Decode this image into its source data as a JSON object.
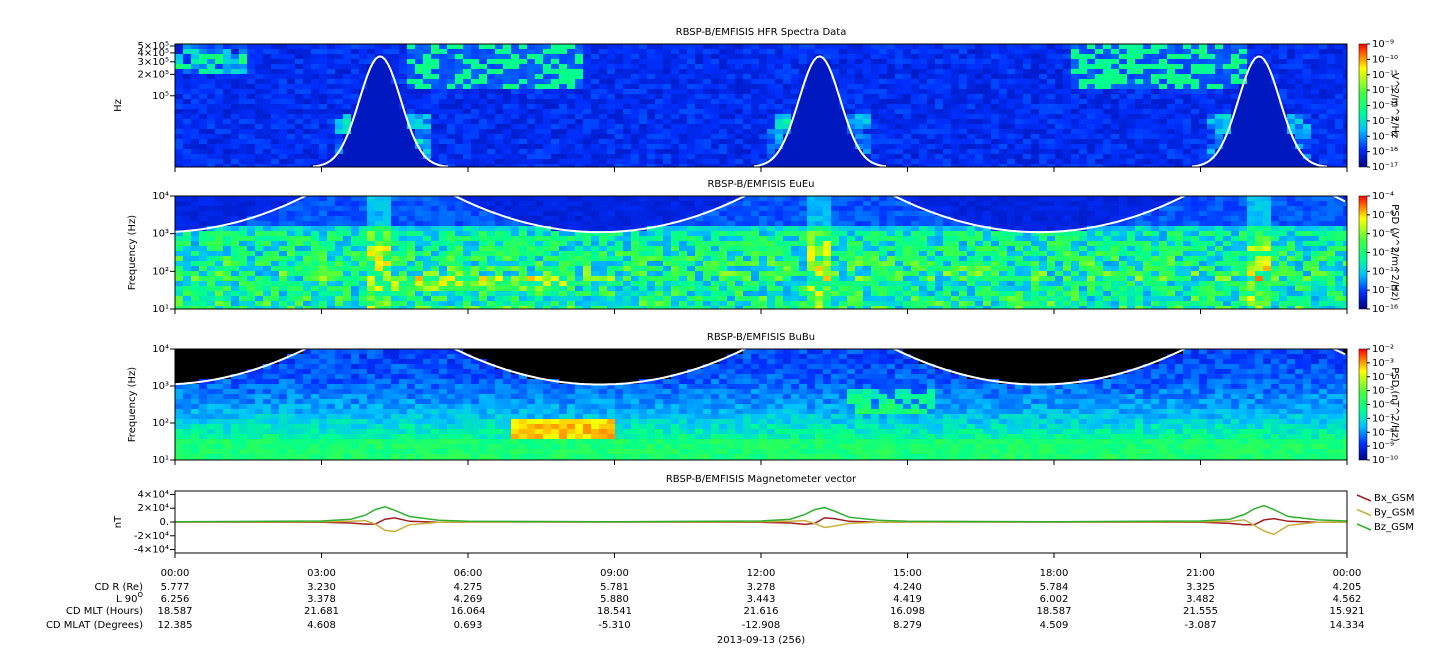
{
  "chart_data": [
    {
      "type": "spectrogram",
      "title": "RBSP-B/EMFISIS  HFR Spectra Data",
      "ylabel": "Hz",
      "log": true,
      "ylim": [
        10000,
        533000
      ],
      "yticks": [
        {
          "value": 500000,
          "label": "5×10⁵"
        },
        {
          "value": 400000,
          "label": "4×10⁵"
        },
        {
          "value": 300000,
          "label": "3×10⁵"
        },
        {
          "value": 200000,
          "label": "2×10⁵"
        },
        {
          "value": 100000,
          "label": "10⁵"
        }
      ],
      "colorbar": {
        "label": "V^2/m^2/Hz",
        "zlim": [
          1e-17,
          1e-09
        ],
        "zticks": [
          {
            "value": 1e-09,
            "label": "10⁻⁹"
          },
          {
            "value": 1e-10,
            "label": "10⁻¹⁰"
          },
          {
            "value": 1e-11,
            "label": "10⁻¹¹"
          },
          {
            "value": 1e-12,
            "label": "10⁻¹²"
          },
          {
            "value": 1e-13,
            "label": "10⁻¹³"
          },
          {
            "value": 1e-14,
            "label": "10⁻¹⁴"
          },
          {
            "value": 1e-15,
            "label": "10⁻¹⁵"
          },
          {
            "value": 1e-16,
            "label": "10⁻¹⁶"
          },
          {
            "value": 1e-17,
            "label": "10⁻¹⁷"
          }
        ]
      }
    },
    {
      "type": "spectrogram",
      "title": "RBSP-B/EMFISIS  EuEu",
      "ylabel": "Frequency (Hz)",
      "log": true,
      "ylim": [
        10,
        10000
      ],
      "yticks": [
        {
          "value": 10000,
          "label": "10⁴"
        },
        {
          "value": 1000,
          "label": "10³"
        },
        {
          "value": 100,
          "label": "10²"
        },
        {
          "value": 10,
          "label": "10¹"
        }
      ],
      "colorbar": {
        "label": "PSD (V^2/m^2/Hz)",
        "zlim": [
          1e-16,
          0.0001
        ],
        "zticks": [
          {
            "value": 0.0001,
            "label": "10⁻⁴"
          },
          {
            "value": 1e-06,
            "label": "10⁻⁶"
          },
          {
            "value": 1e-08,
            "label": "10⁻⁸"
          },
          {
            "value": 1e-10,
            "label": "10⁻¹⁰"
          },
          {
            "value": 1e-12,
            "label": "10⁻¹²"
          },
          {
            "value": 1e-14,
            "label": "10⁻¹⁴"
          },
          {
            "value": 1e-16,
            "label": "10⁻¹⁶"
          }
        ]
      }
    },
    {
      "type": "spectrogram",
      "title": "RBSP-B/EMFISIS  BuBu",
      "ylabel": "Frequency (Hz)",
      "log": true,
      "ylim": [
        10,
        10000
      ],
      "yticks": [
        {
          "value": 10000,
          "label": "10⁴"
        },
        {
          "value": 1000,
          "label": "10³"
        },
        {
          "value": 100,
          "label": "10²"
        },
        {
          "value": 10,
          "label": "10¹"
        }
      ],
      "colorbar": {
        "label": "PSD (nT^2/Hz)",
        "zlim": [
          1e-10,
          0.01
        ],
        "zticks": [
          {
            "value": 0.01,
            "label": "10⁻²"
          },
          {
            "value": 0.001,
            "label": "10⁻³"
          },
          {
            "value": 0.0001,
            "label": "10⁻⁴"
          },
          {
            "value": 1e-05,
            "label": "10⁻⁵"
          },
          {
            "value": 1e-06,
            "label": "10⁻⁶"
          },
          {
            "value": 1e-07,
            "label": "10⁻⁷"
          },
          {
            "value": 1e-08,
            "label": "10⁻⁸"
          },
          {
            "value": 1e-09,
            "label": "10⁻⁹"
          },
          {
            "value": 1e-10,
            "label": "10⁻¹⁰"
          }
        ]
      }
    },
    {
      "type": "line",
      "title": "RBSP-B/EMFISIS  Magnetometer vector",
      "ylabel": "nT",
      "ylim": [
        -45000,
        45000
      ],
      "yticks": [
        {
          "value": 40000,
          "label": "4×10⁴"
        },
        {
          "value": 20000,
          "label": "2×10⁴"
        },
        {
          "value": 0,
          "label": "0."
        },
        {
          "value": -20000,
          "label": "-2×10⁴"
        },
        {
          "value": -40000,
          "label": "-4×10⁴"
        }
      ],
      "x": [
        0,
        3,
        3.6,
        3.9,
        4.1,
        4.3,
        4.5,
        4.8,
        5.4,
        6,
        9,
        12,
        12.6,
        12.9,
        13.1,
        13.3,
        13.5,
        13.8,
        14.4,
        15,
        18,
        21,
        21.6,
        21.9,
        22.1,
        22.3,
        22.5,
        22.8,
        23.4,
        24
      ],
      "series": [
        {
          "name": "Bx_GSM",
          "color": "#a02020",
          "values": [
            0,
            -500,
            -1500,
            -3000,
            -3000,
            4000,
            6000,
            1000,
            -500,
            0,
            0,
            -500,
            -1500,
            -3500,
            -2000,
            6000,
            5000,
            1000,
            -500,
            0,
            0,
            -500,
            -2000,
            -4000,
            -4000,
            3000,
            5000,
            1000,
            -500,
            0
          ]
        },
        {
          "name": "By_GSM",
          "color": "#c8b040",
          "values": [
            0,
            300,
            1000,
            2000,
            -3000,
            -12000,
            -14000,
            -4000,
            -500,
            0,
            0,
            300,
            1000,
            2000,
            -2000,
            -8000,
            -6000,
            -2000,
            -500,
            0,
            0,
            300,
            1000,
            3000,
            -5000,
            -13000,
            -18000,
            -5000,
            -500,
            0
          ]
        },
        {
          "name": "Bz_GSM",
          "color": "#30b030",
          "values": [
            500,
            1500,
            4000,
            10000,
            18000,
            22000,
            17000,
            8000,
            2500,
            1000,
            500,
            1500,
            4000,
            11000,
            18000,
            21000,
            16000,
            7000,
            2500,
            1000,
            500,
            1500,
            4000,
            11000,
            19000,
            24000,
            18000,
            8000,
            3000,
            1500
          ]
        }
      ]
    }
  ],
  "x_axis": {
    "xlim": [
      0,
      24
    ],
    "xticks": [
      {
        "value": 0,
        "label": "00:00"
      },
      {
        "value": 3,
        "label": "03:00"
      },
      {
        "value": 6,
        "label": "06:00"
      },
      {
        "value": 9,
        "label": "09:00"
      },
      {
        "value": 12,
        "label": "12:00"
      },
      {
        "value": 15,
        "label": "15:00"
      },
      {
        "value": 18,
        "label": "18:00"
      },
      {
        "value": 21,
        "label": "21:00"
      },
      {
        "value": 24,
        "label": "00:00"
      }
    ]
  },
  "ephemeris": [
    {
      "label": "CD R (Re)",
      "values": [
        "5.777",
        "3.230",
        "4.275",
        "5.781",
        "3.278",
        "4.240",
        "5.784",
        "3.325",
        "4.205"
      ]
    },
    {
      "label": "L 90",
      "superscript": "O",
      "values": [
        "6.256",
        "3.378",
        "4.269",
        "5.880",
        "3.443",
        "4.419",
        "6.002",
        "3.482",
        "4.562"
      ]
    },
    {
      "label": "CD MLT (Hours)",
      "values": [
        "18.587",
        "21.681",
        "16.064",
        "18.541",
        "21.616",
        "16.098",
        "18.587",
        "21.555",
        "15.921"
      ]
    },
    {
      "label": "CD MLAT (Degrees)",
      "values": [
        "12.385",
        "4.608",
        "0.693",
        "-5.310",
        "-12.908",
        "8.279",
        "4.509",
        "-3.087",
        "14.334"
      ]
    }
  ],
  "date": "2013-09-13 (256)"
}
